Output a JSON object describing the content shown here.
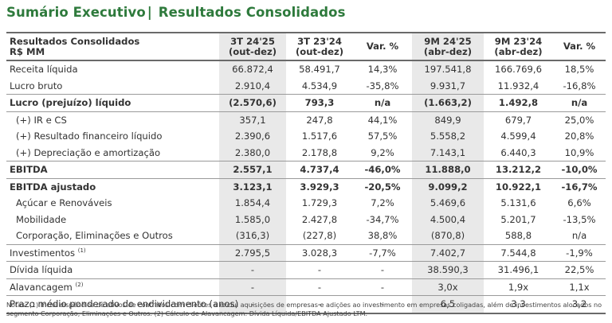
{
  "title": {
    "main": "Sumário Executivo",
    "separator": "|",
    "sub": "Resultados Consolidados"
  },
  "table": {
    "header": {
      "label_line1": "Resultados Consolidados",
      "label_line2": "R$ MM",
      "cols": [
        {
          "l1": "3T 24'25",
          "l2": "(out-dez)"
        },
        {
          "l1": "3T 23'24",
          "l2": "(out-dez)"
        },
        {
          "l1": "Var. %",
          "l2": ""
        },
        {
          "l1": "9M 24'25",
          "l2": "(abr-dez)"
        },
        {
          "l1": "9M 23'24",
          "l2": "(abr-dez)"
        },
        {
          "l1": "Var. %",
          "l2": ""
        }
      ]
    },
    "rows": [
      {
        "label": "Receita líquida",
        "sup": "",
        "v": [
          "66.872,4",
          "58.491,7",
          "14,3%",
          "197.541,8",
          "166.769,6",
          "18,5%"
        ]
      },
      {
        "label": "Lucro bruto",
        "sup": "",
        "v": [
          "2.910,4",
          "4.534,9",
          "-35,8%",
          "9.931,7",
          "11.932,4",
          "-16,8%"
        ]
      },
      {
        "label": "Lucro (prejuízo) líquido",
        "sup": "",
        "v": [
          "(2.570,6)",
          "793,3",
          "n/a",
          "(1.663,2)",
          "1.492,8",
          "n/a"
        ]
      },
      {
        "label": "(+) IR e CS",
        "sup": "",
        "v": [
          "357,1",
          "247,8",
          "44,1%",
          "849,9",
          "679,7",
          "25,0%"
        ]
      },
      {
        "label": "(+) Resultado financeiro líquido",
        "sup": "",
        "v": [
          "2.390,6",
          "1.517,6",
          "57,5%",
          "5.558,2",
          "4.599,4",
          "20,8%"
        ]
      },
      {
        "label": "(+) Depreciação e amortização",
        "sup": "",
        "v": [
          "2.380,0",
          "2.178,8",
          "9,2%",
          "7.143,1",
          "6.440,3",
          "10,9%"
        ]
      },
      {
        "label": "EBITDA",
        "sup": "",
        "v": [
          "2.557,1",
          "4.737,4",
          "-46,0%",
          "11.888,0",
          "13.212,2",
          "-10,0%"
        ]
      },
      {
        "label": "EBITDA ajustado",
        "sup": "",
        "v": [
          "3.123,1",
          "3.929,3",
          "-20,5%",
          "9.099,2",
          "10.922,1",
          "-16,7%"
        ]
      },
      {
        "label": "Açúcar e Renováveis",
        "sup": "",
        "v": [
          "1.854,4",
          "1.729,3",
          "7,2%",
          "5.469,6",
          "5.131,6",
          "6,6%"
        ]
      },
      {
        "label": "Mobilidade",
        "sup": "",
        "v": [
          "1.585,0",
          "2.427,8",
          "-34,7%",
          "4.500,4",
          "5.201,7",
          "-13,5%"
        ]
      },
      {
        "label": "Corporação, Eliminações e Outros",
        "sup": "",
        "v": [
          "(316,3)",
          "(227,8)",
          "38,8%",
          "(870,8)",
          "588,8",
          "n/a"
        ]
      },
      {
        "label": "Investimentos",
        "sup": "(1)",
        "v": [
          "2.795,5",
          "3.028,3",
          "-7,7%",
          "7.402,7",
          "7.544,8",
          "-1,9%"
        ]
      },
      {
        "label": "Dívida líquida",
        "sup": "",
        "v": [
          "-",
          "-",
          "-",
          "38.590,3",
          "31.496,1",
          "22,5%"
        ]
      },
      {
        "label": "Alavancagem",
        "sup": "(2)",
        "v": [
          "-",
          "-",
          "-",
          "3,0x",
          "1,9x",
          "1,1x"
        ]
      },
      {
        "label": "Prazo médio ponderado do endividamento (anos)",
        "sup": "",
        "v": [
          "-",
          "-",
          "-",
          "6,5",
          "3,3",
          "3,2"
        ]
      }
    ]
  },
  "notes": "Notas: (1) Inclui dispêndios de ativos de contratos com clientes e exclui aquisições de empresas e adições ao investimento em empresas coligadas, além de investimentos alocados no segmento Corporação, Eliminações e Outros. (2) Cálculo de Alavancagem: Dívida Líquida/EBITDA Ajustado LTM."
}
